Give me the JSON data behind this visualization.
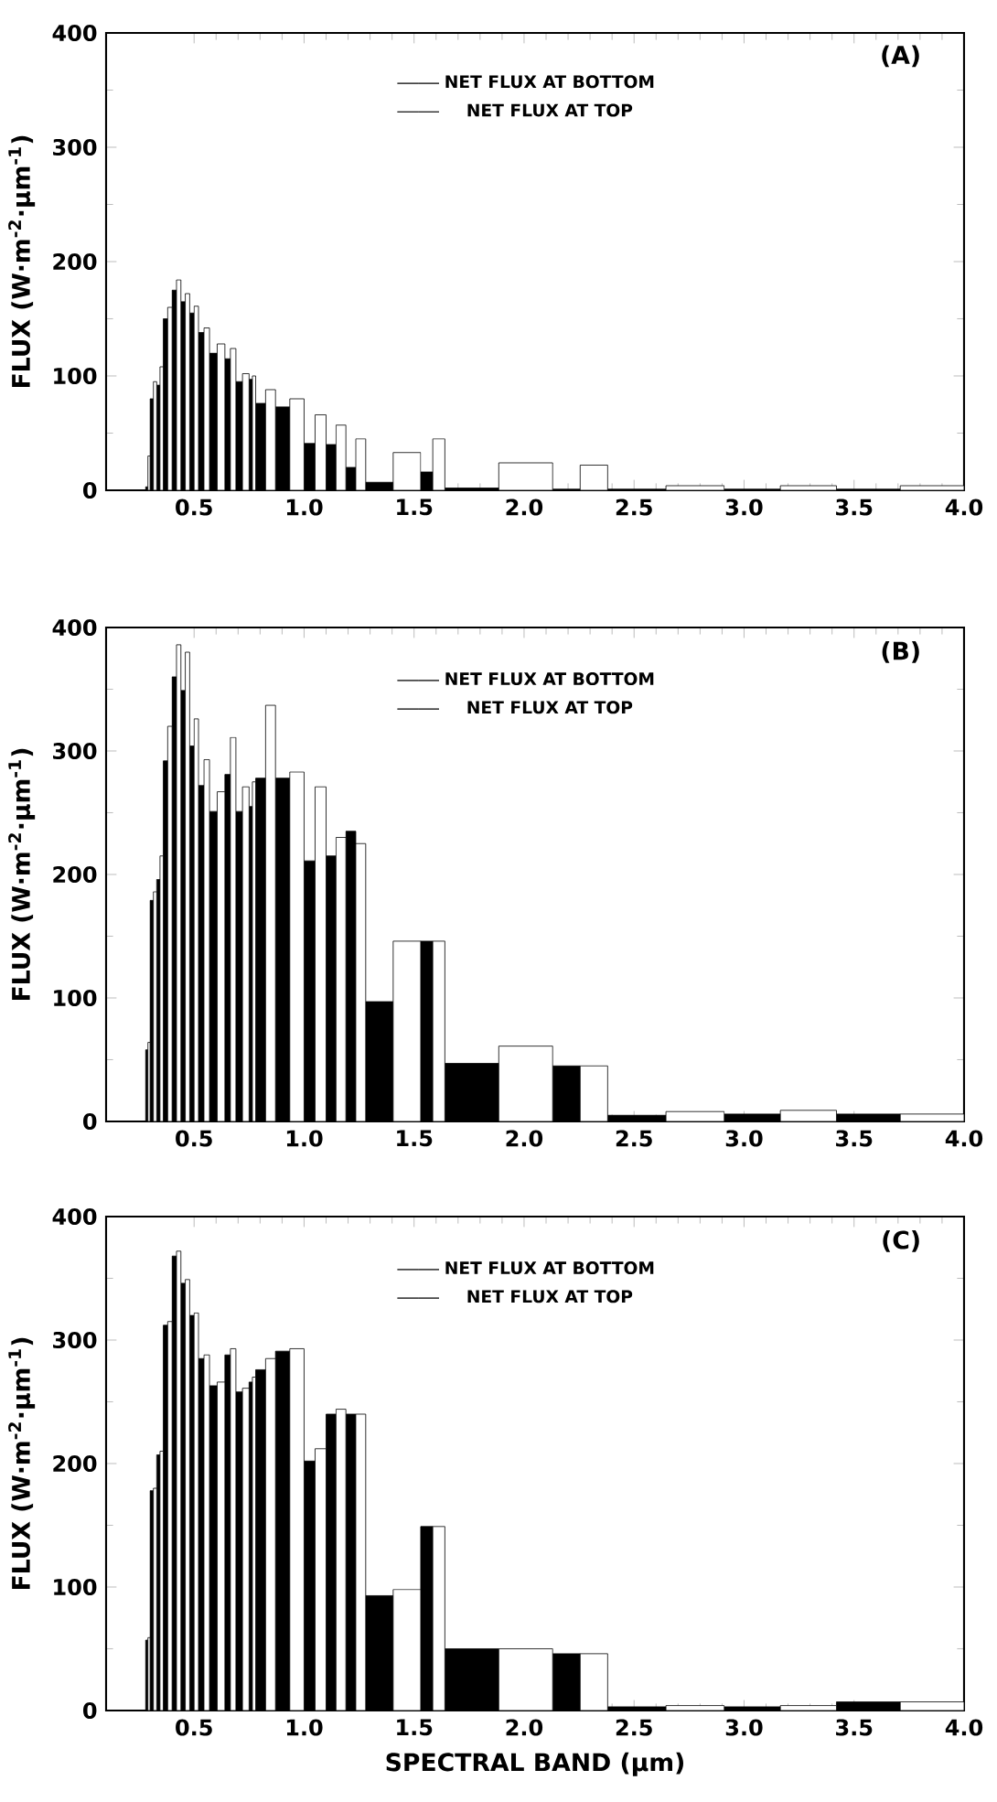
{
  "chart_data": [
    {
      "type": "histogram",
      "title": "(A)",
      "ylabel": "FLUX (W·m$^{-2}$·µm$^{-1}$)",
      "bins": [
        0.28,
        0.3,
        0.33,
        0.36,
        0.4,
        0.44,
        0.48,
        0.52,
        0.57,
        0.64,
        0.69,
        0.75,
        0.78,
        0.87,
        1.0,
        1.1,
        1.19,
        1.28,
        1.53,
        1.64,
        2.13,
        2.38,
        2.91,
        3.42,
        4.0
      ],
      "series": [
        {
          "name": "NET FLUX AT BOTTOM",
          "color": "#000000",
          "values": [
            3,
            80,
            92,
            150,
            175,
            165,
            155,
            138,
            120,
            115,
            95,
            97,
            76,
            73,
            41,
            40,
            20,
            7,
            16,
            2,
            1,
            1,
            1,
            1
          ]
        },
        {
          "name": "NET FLUX AT TOP",
          "color": "#ffffff",
          "values": [
            30,
            95,
            108,
            160,
            184,
            172,
            161,
            142,
            128,
            124,
            102,
            100,
            88,
            80,
            66,
            57,
            45,
            33,
            45,
            24,
            22,
            4,
            4,
            4
          ]
        }
      ],
      "xlim": [
        0.1,
        4.0
      ],
      "ylim": [
        0,
        400
      ],
      "xticks": [
        0.5,
        {
          "value": 1,
          "label": "1.0"
        },
        1.5,
        {
          "value": 2,
          "label": "2.0"
        },
        2.5,
        {
          "value": 3,
          "label": "3.0"
        },
        3.5,
        {
          "value": 4,
          "label": "4.0"
        }
      ],
      "yticks": [
        0,
        100,
        200,
        300,
        400
      ],
      "legend": "top right"
    },
    {
      "type": "histogram",
      "title": "(B)",
      "ylabel": "FLUX (W·m$^{-2}$·µm$^{-1}$)",
      "bins": [
        0.28,
        0.3,
        0.33,
        0.36,
        0.4,
        0.44,
        0.48,
        0.52,
        0.57,
        0.64,
        0.69,
        0.75,
        0.78,
        0.87,
        1.0,
        1.1,
        1.19,
        1.28,
        1.53,
        1.64,
        2.13,
        2.38,
        2.91,
        3.42,
        4.0
      ],
      "series": [
        {
          "name": "NET FLUX AT BOTTOM",
          "color": "#000000",
          "values": [
            58,
            179,
            196,
            292,
            360,
            349,
            304,
            272,
            251,
            281,
            251,
            255,
            278,
            278,
            211,
            215,
            235,
            97,
            146,
            47,
            45,
            5,
            6,
            6
          ]
        },
        {
          "name": "NET FLUX AT TOP",
          "color": "#ffffff",
          "values": [
            64,
            186,
            215,
            320,
            386,
            380,
            326,
            293,
            267,
            311,
            271,
            275,
            337,
            283,
            271,
            230,
            225,
            146,
            146,
            61,
            45,
            8,
            9,
            6
          ]
        }
      ],
      "xlim": [
        0.1,
        4.0
      ],
      "ylim": [
        0,
        400
      ],
      "xticks": [
        0.5,
        {
          "value": 1,
          "label": "1.0"
        },
        1.5,
        {
          "value": 2,
          "label": "2.0"
        },
        2.5,
        {
          "value": 3,
          "label": "3.0"
        },
        3.5,
        {
          "value": 4,
          "label": "4.0"
        }
      ],
      "yticks": [
        0,
        100,
        200,
        300,
        400
      ],
      "legend": "top right"
    },
    {
      "type": "histogram",
      "title": "(C)",
      "ylabel": "FLUX (W·m$^{-2}$·µm$^{-1}$)",
      "xlabel": "SPECTRAL BAND (µm)",
      "bins": [
        0.28,
        0.3,
        0.33,
        0.36,
        0.4,
        0.44,
        0.48,
        0.52,
        0.57,
        0.64,
        0.69,
        0.75,
        0.78,
        0.87,
        1.0,
        1.1,
        1.19,
        1.28,
        1.53,
        1.64,
        2.13,
        2.38,
        2.91,
        3.42,
        4.0
      ],
      "series": [
        {
          "name": "NET FLUX AT BOTTOM",
          "color": "#000000",
          "values": [
            57,
            178,
            207,
            312,
            368,
            346,
            320,
            285,
            263,
            288,
            258,
            266,
            276,
            291,
            202,
            240,
            240,
            93,
            149,
            50,
            46,
            3,
            3,
            7
          ]
        },
        {
          "name": "NET FLUX AT TOP",
          "color": "#ffffff",
          "values": [
            59,
            180,
            210,
            315,
            372,
            349,
            322,
            288,
            266,
            293,
            261,
            270,
            285,
            293,
            212,
            244,
            240,
            98,
            149,
            50,
            46,
            4,
            4,
            7
          ]
        }
      ],
      "xlim": [
        0.1,
        4.0
      ],
      "ylim": [
        0,
        400
      ],
      "xticks": [
        0.5,
        {
          "value": 1,
          "label": "1.0"
        },
        1.5,
        {
          "value": 2,
          "label": "2.0"
        },
        2.5,
        {
          "value": 3,
          "label": "3.0"
        },
        3.5,
        {
          "value": 4,
          "label": "4.0"
        }
      ],
      "yticks": [
        0,
        100,
        200,
        300,
        400
      ],
      "legend": "top right"
    }
  ]
}
